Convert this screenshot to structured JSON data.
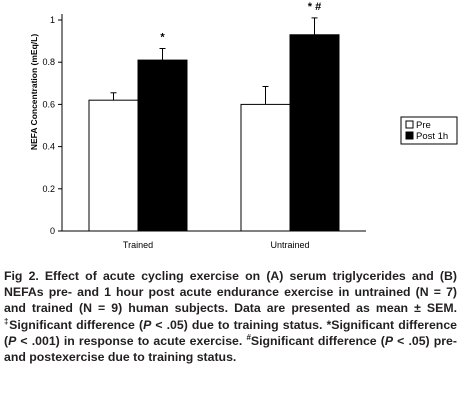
{
  "chart_data": {
    "type": "bar",
    "ylabel": "NEFA Concentration (mEq/L)",
    "ylim": [
      0,
      1
    ],
    "yticks": [
      "0",
      "0.2",
      "0.4",
      "0.6",
      "0.8",
      "1"
    ],
    "categories": [
      "Trained",
      "Untrained"
    ],
    "series": [
      {
        "name": "Pre",
        "color": "#ffffff",
        "values": [
          0.62,
          0.6
        ],
        "errors": [
          0.035,
          0.085
        ]
      },
      {
        "name": "Post 1h",
        "color": "#000000",
        "values": [
          0.81,
          0.93
        ],
        "errors": [
          0.055,
          0.08
        ]
      }
    ],
    "annotations": [
      {
        "category": "Trained",
        "series": "Post 1h",
        "text": "*"
      },
      {
        "category": "Untrained",
        "series": "Post 1h",
        "text": "* #"
      }
    ],
    "legend_position": "right",
    "grid": false
  },
  "caption": {
    "figure_label": "Fig 2.",
    "text_1": "Effect of acute cycling exercise on (A) serum triglycerides and (B) NEFAs pre- and 1 hour post acute endurance exercise in untrained (N = 7) and trained (N = 9) human subjects. Data are presented as mean ± SEM.",
    "mark_1": "‡",
    "text_2": "Significant difference (",
    "p_1": "P",
    "text_3": " < .05) due to training status. *Significant difference (",
    "p_2": "P",
    "text_4": " < .001) in response to acute exercise.",
    "mark_2": "#",
    "text_5": "Significant difference (",
    "p_3": "P",
    "text_6": " < .05) pre- and postexercise due to training status."
  }
}
